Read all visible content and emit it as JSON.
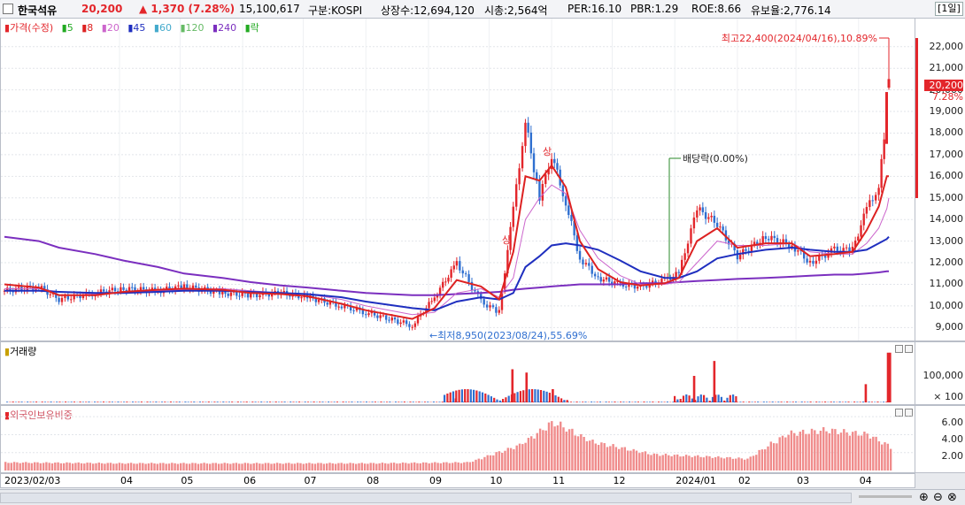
{
  "header": {
    "stock_name": "한국석유",
    "price": "20,200",
    "change": "▲ 1,370 (7.28%)",
    "volume": "15,100,617",
    "market": "구분:KOSPI",
    "listed_shares": "상장수:12,694,120",
    "market_cap": "시총:2,564억",
    "per": "PER:16.10",
    "pbr": "PBR:1.29",
    "roe": "ROE:8.66",
    "float_ratio": "유보율:2,776.14",
    "period": "[1일]"
  },
  "legend": {
    "price_label": "가격(수정)",
    "ma_items": [
      {
        "label": "5",
        "color": "#22aa22"
      },
      {
        "label": "8",
        "color": "#dd2222"
      },
      {
        "label": "20",
        "color": "#cc66cc"
      },
      {
        "label": "45",
        "color": "#1f2fbf"
      },
      {
        "label": "60",
        "color": "#44aacc"
      },
      {
        "label": "120",
        "color": "#66bb66"
      },
      {
        "label": "240",
        "color": "#7b2fbf"
      }
    ],
    "ex_label": "락"
  },
  "annotations": {
    "high": "최고22,400(2024/04/16),10.89%",
    "low": "최저8,950(2023/08/24),55.69%",
    "dividend": "배당락(0.00%)",
    "up_mark": "상",
    "current_price_tag": "20,200",
    "current_pct_tag": "7.28%"
  },
  "panels": {
    "volume_title": "거래량",
    "foreign_title": "외국인보유비중"
  },
  "colors": {
    "up": "#e3262b",
    "down": "#2f6fd0",
    "ma5": "#22aa22",
    "ma8": "#dd2222",
    "ma20": "#cc66cc",
    "ma45": "#1f2fbf",
    "ma60": "#44aacc",
    "ma120": "#66bb66",
    "ma240": "#7b2fbf",
    "foreign_bar": "#f08c8c"
  },
  "chart_data": {
    "type": "line",
    "price_axis": {
      "ticks": [
        "22,000",
        "21,000",
        "20,000",
        "19,000",
        "18,000",
        "17,000",
        "16,000",
        "15,000",
        "14,000",
        "13,000",
        "12,000",
        "11,000",
        "10,000",
        "9,000"
      ],
      "ylim": [
        8400,
        23300
      ]
    },
    "volume_axis": {
      "ticks": [
        "100,000",
        "× 100"
      ]
    },
    "foreign_axis": {
      "ticks": [
        "6.00",
        "4.00",
        "2.00"
      ],
      "ylim": [
        0,
        7.2
      ]
    },
    "x_labels": [
      "2023/02/03",
      "04",
      "05",
      "06",
      "07",
      "08",
      "09",
      "10",
      "11",
      "12",
      "2024/01",
      "02",
      "03",
      "04"
    ],
    "close_series": [
      {
        "x": "2023-02-03",
        "close": 10700
      },
      {
        "x": "2023-02-20",
        "close": 10900
      },
      {
        "x": "2023-03-02",
        "close": 10300
      },
      {
        "x": "2023-03-20",
        "close": 10600
      },
      {
        "x": "2023-04-03",
        "close": 10800
      },
      {
        "x": "2023-04-20",
        "close": 10700
      },
      {
        "x": "2023-05-03",
        "close": 10900
      },
      {
        "x": "2023-05-22",
        "close": 10600
      },
      {
        "x": "2023-06-05",
        "close": 10500
      },
      {
        "x": "2023-06-20",
        "close": 10600
      },
      {
        "x": "2023-07-03",
        "close": 10400
      },
      {
        "x": "2023-07-20",
        "close": 10000
      },
      {
        "x": "2023-08-01",
        "close": 9700
      },
      {
        "x": "2023-08-24",
        "close": 9100
      },
      {
        "x": "2023-09-04",
        "close": 10400
      },
      {
        "x": "2023-09-15",
        "close": 12000
      },
      {
        "x": "2023-09-27",
        "close": 10200
      },
      {
        "x": "2023-10-06",
        "close": 9700
      },
      {
        "x": "2023-10-13",
        "close": 14500
      },
      {
        "x": "2023-10-19",
        "close": 18500
      },
      {
        "x": "2023-10-26",
        "close": 15000
      },
      {
        "x": "2023-11-01",
        "close": 17000
      },
      {
        "x": "2023-11-08",
        "close": 14800
      },
      {
        "x": "2023-11-15",
        "close": 12200
      },
      {
        "x": "2023-11-24",
        "close": 11300
      },
      {
        "x": "2023-12-05",
        "close": 11000
      },
      {
        "x": "2023-12-15",
        "close": 10900
      },
      {
        "x": "2023-12-27",
        "close": 11200
      },
      {
        "x": "2024-01-03",
        "close": 11500
      },
      {
        "x": "2024-01-12",
        "close": 14500
      },
      {
        "x": "2024-01-22",
        "close": 13800
      },
      {
        "x": "2024-02-01",
        "close": 12300
      },
      {
        "x": "2024-02-15",
        "close": 13200
      },
      {
        "x": "2024-02-28",
        "close": 12800
      },
      {
        "x": "2024-03-08",
        "close": 12000
      },
      {
        "x": "2024-03-20",
        "close": 12600
      },
      {
        "x": "2024-03-29",
        "close": 12600
      },
      {
        "x": "2024-04-05",
        "close": 14500
      },
      {
        "x": "2024-04-11",
        "close": 15500
      },
      {
        "x": "2024-04-15",
        "close": 18830
      },
      {
        "x": "2024-04-16",
        "close": 20200
      }
    ],
    "ma8_series": [
      11000,
      10850,
      10500,
      10500,
      10650,
      10750,
      10800,
      10750,
      10600,
      10550,
      10450,
      10100,
      9800,
      9400,
      9900,
      11200,
      10900,
      10300,
      12500,
      16000,
      15800,
      16500,
      15500,
      13000,
      11700,
      11100,
      10950,
      11050,
      11300,
      13000,
      13600,
      12700,
      12900,
      12900,
      12300,
      12400,
      12500,
      13500,
      14600,
      16000,
      16000
    ],
    "ma45_series": [
      10700,
      10700,
      10650,
      10600,
      10600,
      10650,
      10700,
      10700,
      10650,
      10600,
      10550,
      10400,
      10200,
      9900,
      9800,
      10200,
      10400,
      10300,
      10600,
      11800,
      12300,
      12800,
      12900,
      12800,
      12600,
      12100,
      11600,
      11300,
      11300,
      11600,
      12200,
      12400,
      12600,
      12700,
      12600,
      12500,
      12500,
      12600,
      12900,
      13100,
      13200
    ],
    "ma240_series": [
      13200,
      13000,
      12700,
      12400,
      12100,
      11800,
      11500,
      11300,
      11100,
      10950,
      10850,
      10700,
      10600,
      10500,
      10500,
      10550,
      10600,
      10650,
      10750,
      10800,
      10850,
      10900,
      10950,
      11000,
      11000,
      11000,
      11050,
      11050,
      11100,
      11150,
      11200,
      11250,
      11300,
      11350,
      11400,
      11450,
      11450,
      11500,
      11550,
      11600,
      11600
    ],
    "ma20_series": [
      10800,
      10800,
      10650,
      10550,
      10600,
      10700,
      10750,
      10800,
      10700,
      10600,
      10550,
      10300,
      10000,
      9600,
      9700,
      10600,
      10800,
      10400,
      11300,
      14000,
      15000,
      15600,
      15200,
      13500,
      12200,
      11400,
      11000,
      11000,
      11100,
      12000,
      13000,
      12800,
      12800,
      12900,
      12500,
      12400,
      12400,
      12900,
      13600,
      14500,
      15000
    ],
    "foreign_ownership": [
      {
        "x": "2023-02-03",
        "pct": 0.9
      },
      {
        "x": "2023-04-01",
        "pct": 0.8
      },
      {
        "x": "2023-06-01",
        "pct": 0.8
      },
      {
        "x": "2023-08-01",
        "pct": 0.8
      },
      {
        "x": "2023-09-20",
        "pct": 0.9
      },
      {
        "x": "2023-10-15",
        "pct": 2.8
      },
      {
        "x": "2023-11-01",
        "pct": 5.4
      },
      {
        "x": "2023-11-20",
        "pct": 3.2
      },
      {
        "x": "2023-12-20",
        "pct": 1.8
      },
      {
        "x": "2024-01-20",
        "pct": 1.5
      },
      {
        "x": "2024-02-05",
        "pct": 1.3
      },
      {
        "x": "2024-02-25",
        "pct": 4.1
      },
      {
        "x": "2024-03-15",
        "pct": 4.5
      },
      {
        "x": "2024-04-05",
        "pct": 4.0
      },
      {
        "x": "2024-04-16",
        "pct": 2.6
      }
    ],
    "volume_spikes": [
      {
        "x": "2023-09-14",
        "vol": 12000
      },
      {
        "x": "2023-10-12",
        "vol": 100000
      },
      {
        "x": "2023-10-19",
        "vol": 90000
      },
      {
        "x": "2023-11-01",
        "vol": 40000
      },
      {
        "x": "2024-01-10",
        "vol": 80000
      },
      {
        "x": "2024-01-20",
        "vol": 125000
      },
      {
        "x": "2024-04-04",
        "vol": 55000
      },
      {
        "x": "2024-04-15",
        "vol": 150000
      },
      {
        "x": "2024-04-16",
        "vol": 150000
      }
    ]
  }
}
